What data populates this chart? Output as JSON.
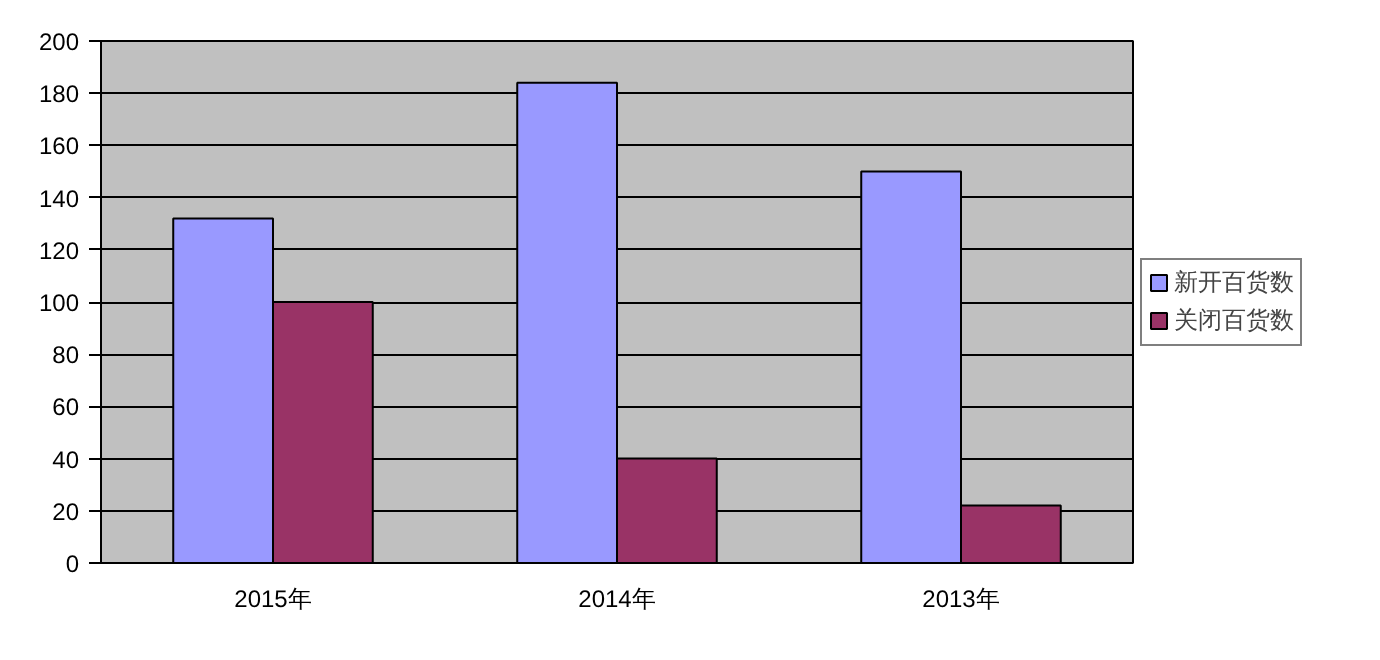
{
  "chart_data": {
    "type": "bar",
    "categories": [
      "2015年",
      "2014年",
      "2013年"
    ],
    "series": [
      {
        "name": "新开百货数",
        "color": "#9999ff",
        "values": [
          132,
          184,
          150
        ]
      },
      {
        "name": "关闭百货数",
        "color": "#993366",
        "values": [
          100,
          40,
          22
        ]
      }
    ],
    "ylim": [
      0,
      200
    ],
    "yticks": [
      0,
      20,
      40,
      60,
      80,
      100,
      120,
      140,
      160,
      180,
      200
    ],
    "grid": "y",
    "legend": "right"
  }
}
